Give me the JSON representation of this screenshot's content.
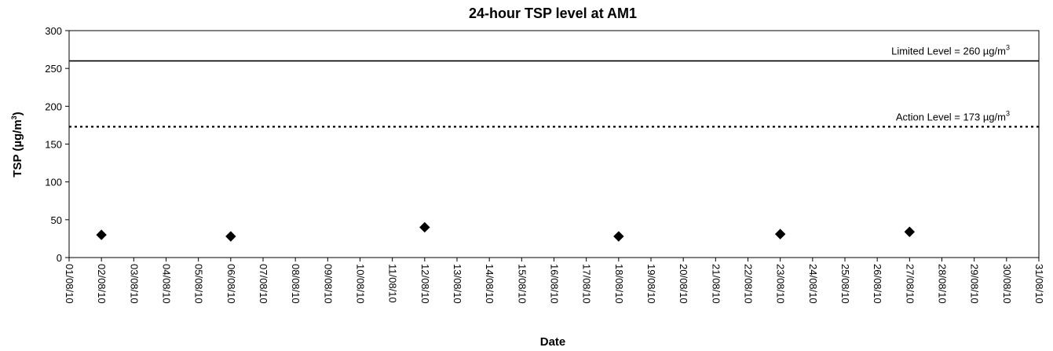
{
  "chart_data": {
    "type": "scatter",
    "title": "24-hour TSP level at AM1",
    "xlabel": "Date",
    "ylabel": {
      "base": "TSP (µg/m",
      "sup": "3",
      "tail": ")"
    },
    "ylim": [
      0,
      300
    ],
    "yticks": [
      0,
      50,
      100,
      150,
      200,
      250,
      300
    ],
    "x_categories": [
      "01/08/10",
      "02/08/10",
      "03/08/10",
      "04/08/10",
      "05/08/10",
      "06/08/10",
      "07/08/10",
      "08/08/10",
      "09/08/10",
      "10/08/10",
      "11/08/10",
      "12/08/10",
      "13/08/10",
      "14/08/10",
      "15/08/10",
      "16/08/10",
      "17/08/10",
      "18/08/10",
      "19/08/10",
      "20/08/10",
      "21/08/10",
      "22/08/10",
      "23/08/10",
      "24/08/10",
      "25/08/10",
      "26/08/10",
      "27/08/10",
      "28/08/10",
      "29/08/10",
      "30/08/10",
      "31/08/10"
    ],
    "series": [
      {
        "marker": "diamond",
        "color": "#000000",
        "points": [
          {
            "x": "02/08/10",
            "y": 30
          },
          {
            "x": "06/08/10",
            "y": 28
          },
          {
            "x": "12/08/10",
            "y": 40
          },
          {
            "x": "18/08/10",
            "y": 28
          },
          {
            "x": "23/08/10",
            "y": 31
          },
          {
            "x": "27/08/10",
            "y": 34
          }
        ]
      }
    ],
    "reference_lines": [
      {
        "value": 260,
        "style": "solid",
        "label": {
          "base": "Limited Level = 260 µg/m",
          "sup": "3"
        }
      },
      {
        "value": 173,
        "style": "dotted",
        "label": {
          "base": "Action Level = 173 µg/m",
          "sup": "3"
        }
      }
    ],
    "grid": false,
    "legend": "none"
  }
}
